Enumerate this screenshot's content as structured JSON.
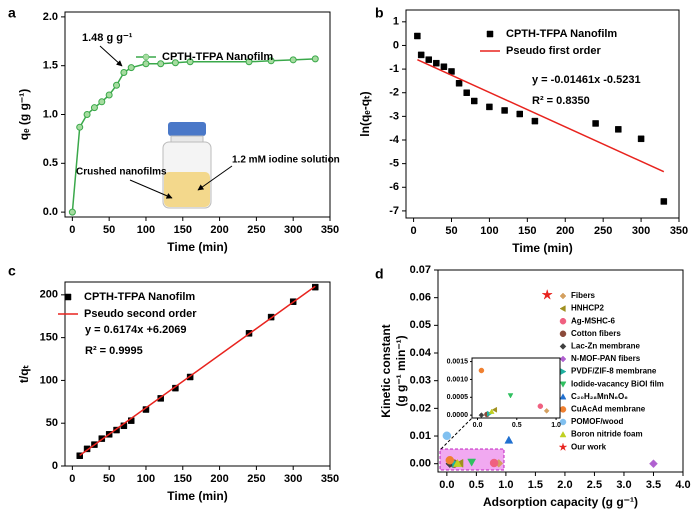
{
  "chart_data": [
    {
      "type": "line",
      "label": "a",
      "xlabel": "Time (min)",
      "ylabel": "qₑ (g g⁻¹)",
      "xlim": [
        -10,
        350
      ],
      "ylim": [
        -0.05,
        2.05
      ],
      "xticks": [
        0,
        50,
        100,
        150,
        200,
        250,
        300,
        350
      ],
      "yticks": [
        {
          "value": 0,
          "label": "0.0"
        },
        0.5,
        {
          "value": 1,
          "label": "1.0"
        },
        1.5,
        {
          "value": 2,
          "label": "2.0"
        }
      ],
      "annotations": [
        "1.48 g g⁻¹",
        "Crushed nanofilms",
        "1.2 mM iodine solution"
      ],
      "series": [
        {
          "name": "CPTH-TFPA Nanofilm",
          "color": "#3aa84a",
          "marker_fill": "#a6dca0",
          "marker": "circle",
          "line": true,
          "x": [
            0,
            10,
            20,
            30,
            40,
            50,
            60,
            70,
            80,
            100,
            120,
            140,
            160,
            240,
            270,
            300,
            330
          ],
          "values": [
            0,
            0.87,
            1.0,
            1.07,
            1.13,
            1.2,
            1.3,
            1.43,
            1.48,
            1.52,
            1.52,
            1.53,
            1.54,
            1.54,
            1.55,
            1.56,
            1.57
          ]
        }
      ]
    },
    {
      "type": "line",
      "label": "b",
      "xlabel": "Time (min)",
      "ylabel": "ln(qₑ-qₜ)",
      "xlim": [
        -10,
        350
      ],
      "ylim": [
        -7.3,
        1.5
      ],
      "xticks": [
        0,
        50,
        100,
        150,
        200,
        250,
        300,
        350
      ],
      "yticks": [
        1,
        0,
        -1,
        -2,
        -3,
        -4,
        -5,
        -6,
        -7
      ],
      "annotations": [
        "y =  -0.01461x -0.5231",
        "R² =  0.8350"
      ],
      "series": [
        {
          "name": "CPTH-TFPA Nanofilm",
          "color": "#000000",
          "marker": "square",
          "line": false,
          "x": [
            5,
            10,
            20,
            30,
            40,
            50,
            60,
            70,
            80,
            100,
            120,
            140,
            160,
            240,
            270,
            300,
            330
          ],
          "values": [
            0.4,
            -0.4,
            -0.6,
            -0.75,
            -0.9,
            -1.1,
            -1.6,
            -2.0,
            -2.35,
            -2.6,
            -2.75,
            -2.9,
            -3.2,
            -3.3,
            -3.55,
            -3.95,
            -6.6
          ]
        },
        {
          "name": "Pseudo first order",
          "color": "#e8231e",
          "marker": "none",
          "line": true,
          "x": [
            5,
            330
          ],
          "values": [
            -0.6,
            -5.34
          ]
        }
      ]
    },
    {
      "type": "line",
      "label": "c",
      "xlabel": "Time (min)",
      "ylabel": "t/qₜ",
      "xlim": [
        -10,
        350
      ],
      "ylim": [
        0,
        215
      ],
      "xticks": [
        0,
        50,
        100,
        150,
        200,
        250,
        300,
        350
      ],
      "yticks": [
        0,
        50,
        100,
        150,
        200
      ],
      "annotations": [
        "y = 0.6174x +6.2069",
        "R² = 0.9995"
      ],
      "series": [
        {
          "name": "CPTH-TFPA Nanofilm",
          "color": "#000000",
          "marker": "square",
          "line": false,
          "x": [
            10,
            20,
            30,
            40,
            50,
            60,
            70,
            80,
            100,
            120,
            140,
            160,
            240,
            270,
            300,
            330
          ],
          "values": [
            12,
            20,
            25,
            32,
            37,
            42,
            47,
            53,
            66,
            79,
            91,
            104,
            155,
            174,
            192,
            209
          ]
        },
        {
          "name": "Pseudo second order",
          "color": "#e8231e",
          "marker": "none",
          "line": true,
          "x": [
            10,
            330
          ],
          "values": [
            12.4,
            210
          ]
        }
      ]
    },
    {
      "type": "scatter",
      "label": "d",
      "xlabel": "Adsorption capacity (g g⁻¹)",
      "ylabel": [
        "Kinetic constant",
        "(g g⁻¹ min⁻¹)"
      ],
      "xlim": [
        -0.15,
        4.0
      ],
      "ylim": [
        -0.003,
        0.07
      ],
      "xticks": [
        {
          "value": 0,
          "label": "0.0"
        },
        0.5,
        {
          "value": 1,
          "label": "1.0"
        },
        1.5,
        {
          "value": 2,
          "label": "2.0"
        },
        2.5,
        {
          "value": 3,
          "label": "3.0"
        },
        3.5,
        {
          "value": 4,
          "label": "4.0"
        }
      ],
      "yticks": [
        {
          "value": 0,
          "label": "0.00"
        },
        0.01,
        0.02,
        0.03,
        0.04,
        0.05,
        0.06,
        0.07
      ],
      "inset": {
        "xlim": [
          -0.07,
          1.05
        ],
        "ylim": [
          -8e-05,
          0.0016
        ],
        "xticks": [
          {
            "value": 0,
            "label": "0.0"
          },
          0.5,
          {
            "value": 1,
            "label": "1.0"
          }
        ],
        "yticks": [
          {
            "value": 0,
            "label": "0.0000"
          },
          0.0005,
          {
            "value": 0.001,
            "label": "0.0010"
          },
          0.0015
        ]
      },
      "series": [
        {
          "name": "Fibers",
          "color": "#d4a060",
          "marker": "diamond",
          "x": [
            0.88
          ],
          "values": [
            0.00012
          ]
        },
        {
          "name": "HNHCP2",
          "color": "#a09020",
          "marker": "tri-left",
          "x": [
            0.22
          ],
          "values": [
            0.00015
          ]
        },
        {
          "name": "Ag-MSHC-6",
          "color": "#f06080",
          "marker": "circle",
          "x": [
            0.8
          ],
          "values": [
            0.00025
          ]
        },
        {
          "name": "Cotton fibers",
          "color": "#8b4a3a",
          "marker": "circle",
          "x": [
            0.12
          ],
          "values": [
            2e-05
          ]
        },
        {
          "name": "Lac-Zn membrane",
          "color": "#404040",
          "marker": "diamond",
          "x": [
            0.05
          ],
          "values": [
            0
          ]
        },
        {
          "name": "N-MOF-PAN fibers",
          "color": "#b060d0",
          "marker": "diamond",
          "x": [
            3.5
          ],
          "values": [
            0
          ]
        },
        {
          "name": "PVDF/ZIF-8 membrane",
          "color": "#20b0a0",
          "marker": "tri-right",
          "x": [
            0.15
          ],
          "values": [
            4e-05
          ]
        },
        {
          "name": "Iodide-vacancy BiOI film",
          "color": "#30c060",
          "marker": "tri-down",
          "x": [
            0.42
          ],
          "values": [
            0.00055
          ]
        },
        {
          "name": "C₂₀H₂₈MnN₆O₆",
          "color": "#2070d0",
          "marker": "tri-up",
          "x": [
            1.05
          ],
          "values": [
            0.0085
          ]
        },
        {
          "name": "CuAcAd membrane",
          "color": "#f08030",
          "marker": "circle",
          "x": [
            0.05
          ],
          "values": [
            0.00125
          ]
        },
        {
          "name": "POMOF/wood",
          "color": "#80c0f0",
          "marker": "circle",
          "x": [
            0
          ],
          "values": [
            0.0101
          ]
        },
        {
          "name": "Boron nitride foam",
          "color": "#c0d020",
          "marker": "tri-up",
          "x": [
            0.18
          ],
          "values": [
            0.0001
          ]
        },
        {
          "name": "Our work",
          "color": "#e8231e",
          "marker": "star",
          "x": [
            1.7
          ],
          "values": [
            0.061
          ]
        }
      ]
    }
  ]
}
